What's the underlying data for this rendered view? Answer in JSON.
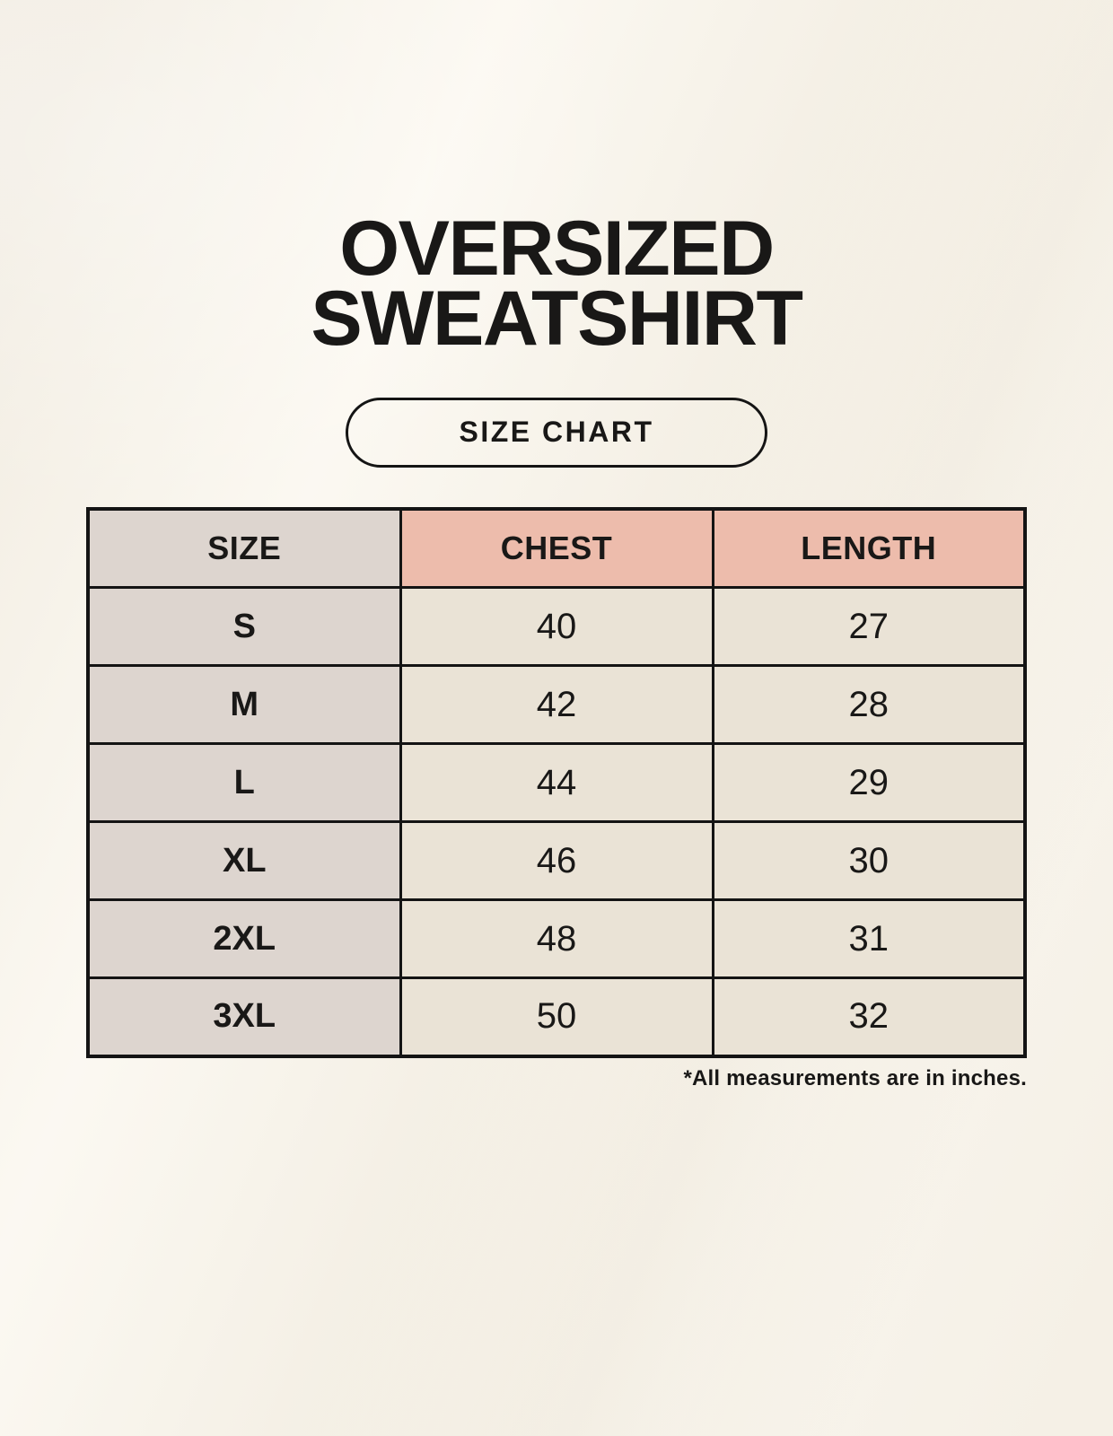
{
  "header": {
    "title_line1": "OVERSIZED",
    "title_line2": "SWEATSHIRT",
    "size_chart_label": "SIZE CHART"
  },
  "table": {
    "columns": [
      "SIZE",
      "CHEST",
      "LENGTH"
    ],
    "rows": [
      {
        "size": "S",
        "chest": "40",
        "length": "27"
      },
      {
        "size": "M",
        "chest": "42",
        "length": "28"
      },
      {
        "size": "L",
        "chest": "44",
        "length": "29"
      },
      {
        "size": "XL",
        "chest": "46",
        "length": "30"
      },
      {
        "size": "2XL",
        "chest": "48",
        "length": "31"
      },
      {
        "size": "3XL",
        "chest": "50",
        "length": "32"
      }
    ],
    "footnote": "*All measurements are in inches."
  },
  "colors": {
    "background": "#f7f3ea",
    "ink": "#191817",
    "header_pink": "#edbcac",
    "cell_gray": "#ddd5cf",
    "cell_cream": "#eae3d6",
    "table_border": "#141414"
  },
  "chart_data": {
    "type": "table",
    "title": "OVERSIZED SWEATSHIRT",
    "subtitle": "SIZE CHART",
    "columns": [
      "SIZE",
      "CHEST",
      "LENGTH"
    ],
    "rows": [
      [
        "S",
        40,
        27
      ],
      [
        "M",
        42,
        28
      ],
      [
        "L",
        44,
        29
      ],
      [
        "XL",
        46,
        30
      ],
      [
        "2XL",
        48,
        31
      ],
      [
        "3XL",
        50,
        32
      ]
    ],
    "units": "inches",
    "note": "*All measurements are in inches."
  }
}
